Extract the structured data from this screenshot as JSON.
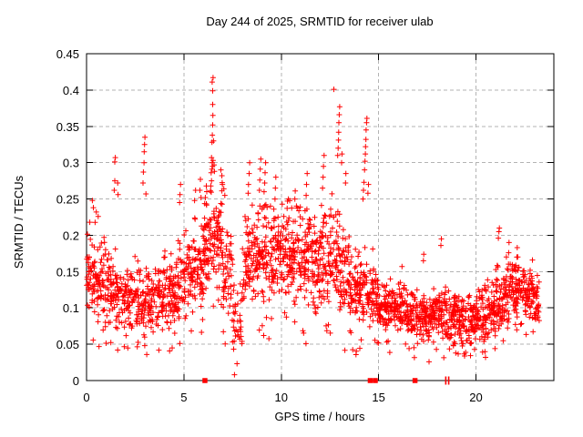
{
  "chart_data": {
    "type": "scatter",
    "title": "Day 244 of 2025, SRMTID for receiver ulab",
    "xlabel": "GPS time / hours",
    "ylabel": "SRMTID / TECUs",
    "xlim": [
      0,
      24
    ],
    "ylim": [
      0,
      0.45
    ],
    "xticks": [
      0,
      5,
      10,
      15,
      20
    ],
    "xtick_labels": [
      "0",
      "5",
      "10",
      "15",
      "20"
    ],
    "yticks": [
      0,
      0.05,
      0.1,
      0.15,
      0.2,
      0.25,
      0.3,
      0.35,
      0.4,
      0.45
    ],
    "ytick_labels": [
      "0",
      "0.05",
      "0.1",
      "0.15",
      "0.2",
      "0.25",
      "0.3",
      "0.35",
      "0.4",
      "0.45"
    ],
    "grid": true,
    "legend": false,
    "marker": "plus",
    "marker_color": "#ff0000",
    "grid_color": "#b3b3b3",
    "axis_color": "#000000",
    "background_color": "#ffffff",
    "seed": 1337,
    "data_x_end": 23.25,
    "band_profile": [
      [
        0.0,
        0.5,
        55,
        0.148,
        0.07,
        0.045,
        0.23
      ],
      [
        0.5,
        1.0,
        55,
        0.135,
        0.065,
        0.04,
        0.22
      ],
      [
        1.0,
        1.5,
        52,
        0.125,
        0.06,
        0.05,
        0.24
      ],
      [
        1.5,
        2.0,
        52,
        0.12,
        0.055,
        0.04,
        0.23
      ],
      [
        2.0,
        2.5,
        50,
        0.115,
        0.055,
        0.03,
        0.21
      ],
      [
        2.5,
        3.0,
        52,
        0.115,
        0.055,
        0.04,
        0.25
      ],
      [
        3.0,
        3.5,
        52,
        0.11,
        0.055,
        0.03,
        0.21
      ],
      [
        3.5,
        4.0,
        52,
        0.115,
        0.055,
        0.04,
        0.21
      ],
      [
        4.0,
        4.5,
        55,
        0.12,
        0.06,
        0.04,
        0.23
      ],
      [
        4.5,
        5.0,
        55,
        0.13,
        0.06,
        0.04,
        0.24
      ],
      [
        5.0,
        5.5,
        55,
        0.145,
        0.065,
        0.05,
        0.25
      ],
      [
        5.5,
        6.0,
        58,
        0.16,
        0.07,
        0.06,
        0.26
      ],
      [
        6.0,
        6.5,
        62,
        0.19,
        0.08,
        0.07,
        0.3
      ],
      [
        6.5,
        7.0,
        62,
        0.195,
        0.08,
        0.07,
        0.3
      ],
      [
        7.0,
        7.5,
        50,
        0.15,
        0.075,
        0.04,
        0.26
      ],
      [
        7.5,
        8.0,
        36,
        0.085,
        0.06,
        0.015,
        0.2
      ],
      [
        8.0,
        8.5,
        55,
        0.16,
        0.07,
        0.05,
        0.26
      ],
      [
        8.5,
        9.0,
        58,
        0.17,
        0.07,
        0.055,
        0.26
      ],
      [
        9.0,
        9.5,
        58,
        0.17,
        0.07,
        0.045,
        0.26
      ],
      [
        9.5,
        10.0,
        58,
        0.17,
        0.07,
        0.05,
        0.26
      ],
      [
        10.0,
        10.5,
        58,
        0.18,
        0.07,
        0.08,
        0.25
      ],
      [
        10.5,
        11.0,
        58,
        0.18,
        0.07,
        0.08,
        0.26
      ],
      [
        11.0,
        11.5,
        58,
        0.17,
        0.07,
        0.04,
        0.25
      ],
      [
        11.5,
        12.0,
        58,
        0.16,
        0.07,
        0.055,
        0.25
      ],
      [
        12.0,
        12.5,
        58,
        0.17,
        0.075,
        0.06,
        0.26
      ],
      [
        12.5,
        13.0,
        58,
        0.175,
        0.08,
        0.06,
        0.3
      ],
      [
        13.0,
        13.5,
        55,
        0.15,
        0.075,
        0.03,
        0.28
      ],
      [
        13.5,
        14.0,
        55,
        0.12,
        0.06,
        0.035,
        0.22
      ],
      [
        14.0,
        14.5,
        55,
        0.125,
        0.06,
        0.04,
        0.24
      ],
      [
        14.5,
        15.0,
        55,
        0.125,
        0.055,
        0.04,
        0.225
      ],
      [
        15.0,
        15.5,
        55,
        0.1,
        0.04,
        0.04,
        0.16
      ],
      [
        15.5,
        16.0,
        55,
        0.1,
        0.04,
        0.035,
        0.16
      ],
      [
        16.0,
        16.5,
        55,
        0.098,
        0.04,
        0.035,
        0.158
      ],
      [
        16.5,
        17.0,
        55,
        0.092,
        0.04,
        0.03,
        0.155
      ],
      [
        17.0,
        17.5,
        55,
        0.09,
        0.042,
        0.025,
        0.16
      ],
      [
        17.5,
        18.0,
        55,
        0.09,
        0.045,
        0.025,
        0.175
      ],
      [
        18.0,
        18.5,
        58,
        0.09,
        0.045,
        0.03,
        0.18
      ],
      [
        18.5,
        19.0,
        58,
        0.085,
        0.045,
        0.025,
        0.16
      ],
      [
        19.0,
        19.5,
        58,
        0.085,
        0.045,
        0.025,
        0.155
      ],
      [
        19.5,
        20.0,
        58,
        0.088,
        0.045,
        0.03,
        0.16
      ],
      [
        20.0,
        20.5,
        58,
        0.09,
        0.045,
        0.03,
        0.165
      ],
      [
        20.5,
        21.0,
        58,
        0.095,
        0.045,
        0.035,
        0.18
      ],
      [
        21.0,
        21.5,
        58,
        0.115,
        0.05,
        0.05,
        0.195
      ],
      [
        21.5,
        22.0,
        58,
        0.125,
        0.05,
        0.06,
        0.185
      ],
      [
        22.0,
        22.5,
        58,
        0.125,
        0.05,
        0.06,
        0.18
      ],
      [
        22.5,
        23.0,
        58,
        0.115,
        0.045,
        0.06,
        0.17
      ],
      [
        23.0,
        23.25,
        30,
        0.105,
        0.04,
        0.06,
        0.155
      ]
    ],
    "spike_points": [
      [
        0.3,
        0.248
      ],
      [
        0.35,
        0.238
      ],
      [
        0.5,
        0.232
      ],
      [
        0.6,
        0.226
      ],
      [
        0.17,
        0.218
      ],
      [
        1.42,
        0.262
      ],
      [
        1.45,
        0.275
      ],
      [
        1.45,
        0.301
      ],
      [
        1.48,
        0.307
      ],
      [
        1.6,
        0.272
      ],
      [
        1.62,
        0.256
      ],
      [
        2.9,
        0.272
      ],
      [
        2.92,
        0.287
      ],
      [
        2.95,
        0.3
      ],
      [
        2.96,
        0.315
      ],
      [
        2.98,
        0.325
      ],
      [
        3.0,
        0.335
      ],
      [
        3.05,
        0.257
      ],
      [
        4.78,
        0.245
      ],
      [
        4.8,
        0.256
      ],
      [
        4.83,
        0.27
      ],
      [
        5.55,
        0.248
      ],
      [
        5.6,
        0.262
      ],
      [
        5.82,
        0.262
      ],
      [
        5.85,
        0.277
      ],
      [
        5.88,
        0.252
      ],
      [
        6.1,
        0.252
      ],
      [
        6.15,
        0.268
      ],
      [
        6.45,
        0.411
      ],
      [
        6.5,
        0.417
      ],
      [
        6.48,
        0.399
      ],
      [
        6.48,
        0.38
      ],
      [
        6.49,
        0.365
      ],
      [
        6.48,
        0.352
      ],
      [
        6.46,
        0.338
      ],
      [
        6.44,
        0.328
      ],
      [
        6.52,
        0.33
      ],
      [
        6.42,
        0.307
      ],
      [
        6.45,
        0.3
      ],
      [
        6.47,
        0.295
      ],
      [
        6.5,
        0.303
      ],
      [
        6.44,
        0.291
      ],
      [
        6.4,
        0.286
      ],
      [
        6.42,
        0.275
      ],
      [
        6.38,
        0.268
      ],
      [
        6.55,
        0.297
      ],
      [
        6.57,
        0.288
      ],
      [
        6.9,
        0.29
      ],
      [
        6.95,
        0.282
      ],
      [
        6.98,
        0.27
      ],
      [
        7.05,
        0.264
      ],
      [
        7.1,
        0.255
      ],
      [
        7.6,
        0.008
      ],
      [
        8.3,
        0.258
      ],
      [
        8.32,
        0.27
      ],
      [
        8.35,
        0.285
      ],
      [
        8.38,
        0.3
      ],
      [
        8.88,
        0.262
      ],
      [
        8.9,
        0.276
      ],
      [
        8.92,
        0.291
      ],
      [
        8.95,
        0.305
      ],
      [
        9.12,
        0.26
      ],
      [
        9.15,
        0.272
      ],
      [
        9.17,
        0.286
      ],
      [
        9.2,
        0.3
      ],
      [
        9.68,
        0.25
      ],
      [
        9.7,
        0.265
      ],
      [
        9.72,
        0.28
      ],
      [
        10.3,
        0.237
      ],
      [
        10.32,
        0.247
      ],
      [
        10.7,
        0.25
      ],
      [
        10.72,
        0.261
      ],
      [
        11.28,
        0.255
      ],
      [
        11.3,
        0.27
      ],
      [
        11.33,
        0.285
      ],
      [
        12.12,
        0.265
      ],
      [
        12.15,
        0.28
      ],
      [
        12.17,
        0.295
      ],
      [
        12.2,
        0.31
      ],
      [
        12.7,
        0.401
      ],
      [
        12.9,
        0.31
      ],
      [
        12.92,
        0.32
      ],
      [
        12.94,
        0.331
      ],
      [
        12.95,
        0.342
      ],
      [
        12.96,
        0.355
      ],
      [
        12.98,
        0.366
      ],
      [
        13.0,
        0.377
      ],
      [
        13.1,
        0.3
      ],
      [
        13.12,
        0.312
      ],
      [
        13.3,
        0.272
      ],
      [
        13.32,
        0.285
      ],
      [
        14.2,
        0.25
      ],
      [
        14.22,
        0.262
      ],
      [
        14.25,
        0.273
      ],
      [
        14.28,
        0.29
      ],
      [
        14.3,
        0.302
      ],
      [
        14.32,
        0.312
      ],
      [
        14.33,
        0.322
      ],
      [
        14.35,
        0.332
      ],
      [
        14.36,
        0.345
      ],
      [
        14.38,
        0.355
      ],
      [
        14.4,
        0.361
      ],
      [
        14.45,
        0.258
      ],
      [
        14.48,
        0.27
      ],
      [
        16.2,
        0.157
      ],
      [
        17.3,
        0.165
      ],
      [
        17.32,
        0.174
      ],
      [
        18.2,
        0.186
      ],
      [
        18.22,
        0.195
      ],
      [
        21.15,
        0.196
      ],
      [
        21.18,
        0.205
      ],
      [
        21.2,
        0.21
      ],
      [
        21.68,
        0.176
      ],
      [
        21.7,
        0.19
      ],
      [
        22.1,
        0.17
      ],
      [
        22.12,
        0.183
      ],
      [
        22.9,
        0.166
      ]
    ],
    "axis_event_squares_x": [
      6.08,
      14.57,
      14.83,
      16.87
    ],
    "axis_event_bars_x": [
      18.45,
      18.6
    ]
  }
}
